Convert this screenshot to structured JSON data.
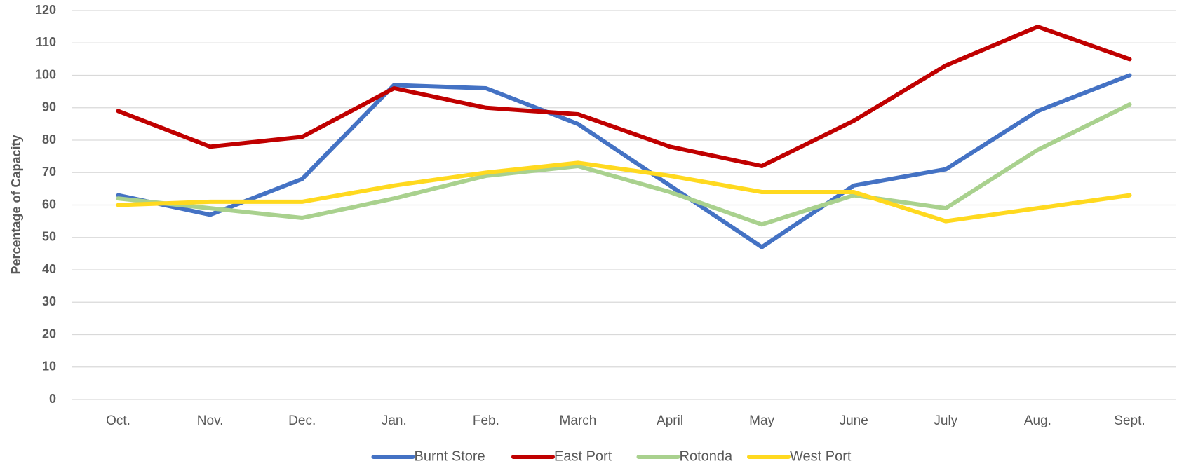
{
  "chart_data": {
    "type": "line",
    "y_axis_label": "Percentage of Capacity",
    "categories": [
      "Oct.",
      "Nov.",
      "Dec.",
      "Jan.",
      "Feb.",
      "March",
      "April",
      "May",
      "June",
      "July",
      "Aug.",
      "Sept."
    ],
    "series": [
      {
        "name": "Burnt Store",
        "color": "#4472c4",
        "values": [
          63,
          57,
          68,
          97,
          96,
          85,
          66,
          47,
          66,
          71,
          89,
          100
        ]
      },
      {
        "name": "East Port",
        "color": "#c00000",
        "values": [
          89,
          78,
          81,
          96,
          90,
          88,
          78,
          72,
          86,
          103,
          115,
          105
        ]
      },
      {
        "name": "Rotonda",
        "color": "#a9d18e",
        "values": [
          62,
          59,
          56,
          62,
          69,
          72,
          64,
          54,
          63,
          59,
          77,
          91
        ]
      },
      {
        "name": "West Port",
        "color": "#ffd91f",
        "values": [
          60,
          61,
          61,
          66,
          70,
          73,
          69,
          64,
          64,
          55,
          59,
          63
        ]
      }
    ],
    "ylim": [
      0,
      120
    ],
    "yticks": [
      0,
      10,
      20,
      30,
      40,
      50,
      60,
      70,
      80,
      90,
      100,
      110,
      120
    ],
    "grid": true,
    "legend": "bottom"
  }
}
